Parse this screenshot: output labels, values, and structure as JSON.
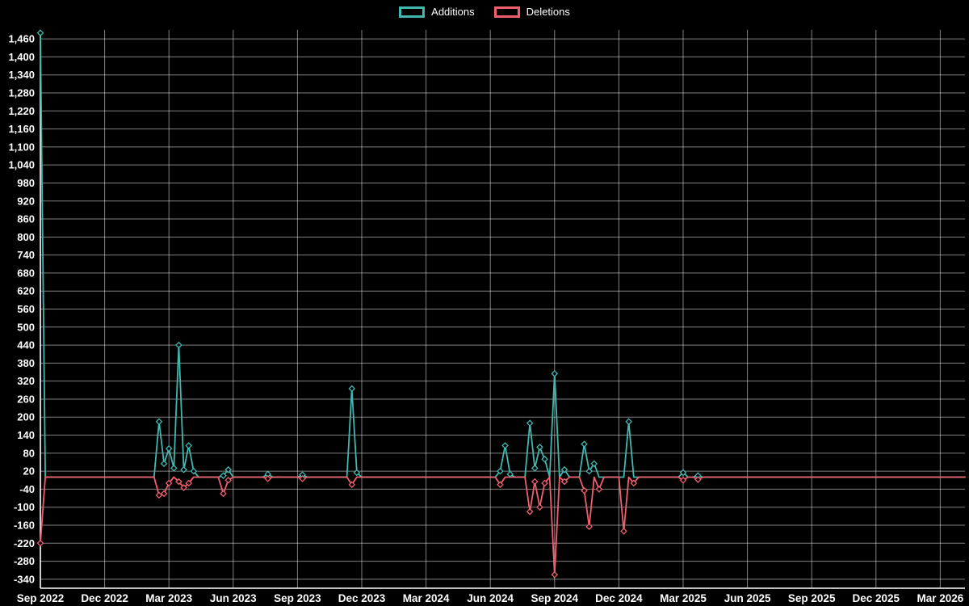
{
  "chart_data": {
    "type": "line",
    "title": "",
    "xlabel": "",
    "ylabel": "",
    "background": "#000000",
    "grid": true,
    "grid_color": "rgba(255,255,255,0.5)",
    "axis_color": "#ffffff",
    "text_color": "#ffffff",
    "legend_position": "top",
    "ylim": [
      -370,
      1490
    ],
    "y_ticks": {
      "min": -340,
      "max": 1460,
      "step": 60
    },
    "weeks_total": 187,
    "x_start": "Sep 2022",
    "x_end": "Mar 2026",
    "x_tick_labels": [
      "Sep 2022",
      "Dec 2022",
      "Mar 2023",
      "Jun 2023",
      "Sep 2023",
      "Dec 2023",
      "Mar 2024",
      "Jun 2024",
      "Sep 2024",
      "Dec 2024",
      "Mar 2025",
      "Jun 2025",
      "Sep 2025",
      "Dec 2025",
      "Mar 2026"
    ],
    "x_tick_weeks": [
      0,
      13,
      26,
      39,
      52,
      65,
      78,
      91,
      104,
      117,
      130,
      143,
      156,
      169,
      182
    ],
    "baseline": 0,
    "legend": [
      {
        "label": "Additions",
        "color": "#41b7b0"
      },
      {
        "label": "Deletions",
        "color": "#f15e6c"
      }
    ],
    "series": [
      {
        "name": "Additions",
        "color": "#41b7b0",
        "points": [
          [
            0,
            1480
          ],
          [
            24,
            185
          ],
          [
            25,
            45
          ],
          [
            26,
            95
          ],
          [
            27,
            30
          ],
          [
            28,
            440
          ],
          [
            29,
            25
          ],
          [
            30,
            105
          ],
          [
            31,
            20
          ],
          [
            37,
            5
          ],
          [
            38,
            25
          ],
          [
            46,
            10
          ],
          [
            53,
            8
          ],
          [
            63,
            295
          ],
          [
            64,
            15
          ],
          [
            93,
            20
          ],
          [
            94,
            105
          ],
          [
            95,
            10
          ],
          [
            99,
            180
          ],
          [
            100,
            30
          ],
          [
            101,
            100
          ],
          [
            102,
            60
          ],
          [
            104,
            345
          ],
          [
            106,
            25
          ],
          [
            110,
            110
          ],
          [
            111,
            20
          ],
          [
            112,
            45
          ],
          [
            119,
            185
          ],
          [
            130,
            15
          ],
          [
            133,
            5
          ]
        ]
      },
      {
        "name": "Deletions",
        "color": "#f15e6c",
        "points": [
          [
            0,
            -220
          ],
          [
            24,
            -60
          ],
          [
            25,
            -55
          ],
          [
            26,
            -20
          ],
          [
            28,
            -15
          ],
          [
            29,
            -35
          ],
          [
            30,
            -20
          ],
          [
            37,
            -55
          ],
          [
            38,
            -10
          ],
          [
            46,
            -5
          ],
          [
            53,
            -5
          ],
          [
            63,
            -25
          ],
          [
            93,
            -25
          ],
          [
            99,
            -115
          ],
          [
            100,
            -15
          ],
          [
            101,
            -100
          ],
          [
            102,
            -20
          ],
          [
            104,
            -325
          ],
          [
            106,
            -15
          ],
          [
            110,
            -45
          ],
          [
            111,
            -165
          ],
          [
            113,
            -40
          ],
          [
            118,
            -180
          ],
          [
            120,
            -20
          ],
          [
            130,
            -10
          ],
          [
            133,
            -8
          ]
        ]
      }
    ]
  }
}
